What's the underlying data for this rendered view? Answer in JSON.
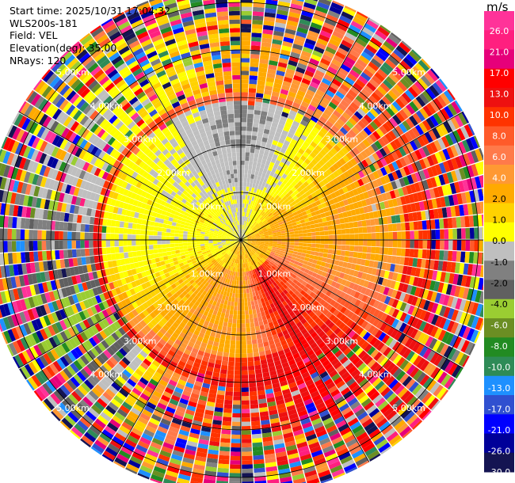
{
  "header": {
    "start_time": "Start time: 2025/10/31 17:04:32",
    "instrument": "WLS200s-181",
    "field": "Field: VEL",
    "elevation": "Elevation(deg): 35.00",
    "nrays": "NRays: 120"
  },
  "colorbar": {
    "unit": "m/s",
    "tick_labels": [
      "26.0",
      "21.0",
      "17.0",
      "13.0",
      "10.0",
      "8.0",
      "6.0",
      "4.0",
      "2.0",
      "1.0",
      "0.0",
      "-1.0",
      "-2.0",
      "-4.0",
      "-6.0",
      "-8.0",
      "-10.0",
      "-13.0",
      "-17.0",
      "-21.0",
      "-26.0",
      "-30.0"
    ],
    "colors_top_to_bottom": [
      "#ff3399",
      "#ff1f7f",
      "#e6007a",
      "#ff0000",
      "#ee1010",
      "#ff3300",
      "#ff5a2a",
      "#ff7a4a",
      "#ff9933",
      "#ffaa00",
      "#ffd200",
      "#ffff00",
      "#bfbfbf",
      "#808080",
      "#606060",
      "#9acd32",
      "#6b8e23",
      "#228b22",
      "#2e8b57",
      "#1e90ff",
      "#3050d0",
      "#0000ff",
      "#000099",
      "#141452"
    ]
  },
  "chart_data": {
    "type": "heatmap",
    "projection": "ppi",
    "field": "VEL",
    "unit": "m/s",
    "elevation_deg": 35.0,
    "n_rays": 120,
    "range_rings_km": [
      1.0,
      2.0,
      3.0,
      4.0,
      5.0
    ],
    "range_ring_labels": [
      "1.00km",
      "2.00km",
      "3.00km",
      "4.00km",
      "5.00km"
    ],
    "max_range_km": 5.4,
    "spoke_step_deg": 30,
    "value_range": [
      -30.0,
      26.0
    ],
    "velocity_pattern": [
      {
        "azimuth_deg": 0,
        "range_km": [
          0.2,
          1.5
        ],
        "velocity": -3.0
      },
      {
        "azimuth_deg": 0,
        "range_km": [
          1.5,
          2.5
        ],
        "velocity": -5.0
      },
      {
        "azimuth_deg": 90,
        "range_km": [
          0.5,
          3.0
        ],
        "velocity": 4.0
      },
      {
        "azimuth_deg": 150,
        "range_km": [
          1.0,
          5.0
        ],
        "velocity": 18.0
      },
      {
        "azimuth_deg": 180,
        "range_km": [
          0.3,
          2.0
        ],
        "velocity": 3.0
      },
      {
        "azimuth_deg": 180,
        "range_km": [
          3.0,
          5.0
        ],
        "velocity": 15.0
      },
      {
        "azimuth_deg": 240,
        "range_km": [
          3.5,
          5.0
        ],
        "velocity": -12.0
      },
      {
        "azimuth_deg": 270,
        "range_km": [
          0.3,
          2.5
        ],
        "velocity": -1.5
      }
    ]
  }
}
